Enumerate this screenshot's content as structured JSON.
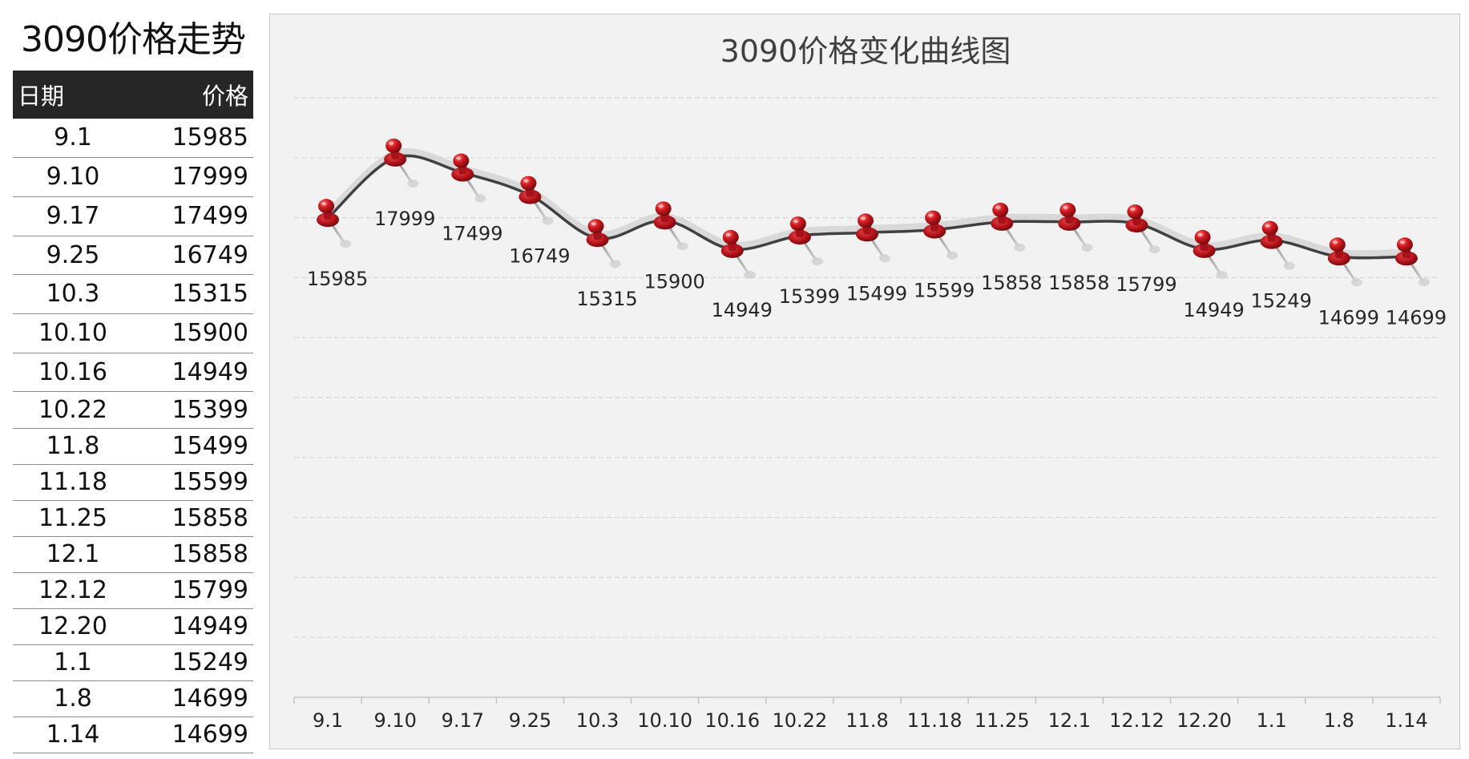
{
  "table": {
    "title": "3090价格走势",
    "headers": {
      "date": "日期",
      "price": "价格"
    },
    "rows": [
      {
        "date": "9.1",
        "price": "15985"
      },
      {
        "date": "9.10",
        "price": "17999"
      },
      {
        "date": "9.17",
        "price": "17499"
      },
      {
        "date": "9.25",
        "price": "16749"
      },
      {
        "date": "10.3",
        "price": "15315"
      },
      {
        "date": "10.10",
        "price": "15900"
      },
      {
        "date": "10.16",
        "price": "14949"
      },
      {
        "date": "10.22",
        "price": "15399"
      },
      {
        "date": "11.8",
        "price": "15499"
      },
      {
        "date": "11.18",
        "price": "15599"
      },
      {
        "date": "11.25",
        "price": "15858"
      },
      {
        "date": "12.1",
        "price": "15858"
      },
      {
        "date": "12.12",
        "price": "15799"
      },
      {
        "date": "12.20",
        "price": "14949"
      },
      {
        "date": "1.1",
        "price": "15249"
      },
      {
        "date": "1.8",
        "price": "14699"
      },
      {
        "date": "1.14",
        "price": "14699"
      }
    ]
  },
  "chart_data": {
    "type": "line",
    "title": "3090价格变化曲线图",
    "xlabel": "",
    "ylabel": "",
    "categories": [
      "9.1",
      "9.10",
      "9.17",
      "9.25",
      "10.3",
      "10.10",
      "10.16",
      "10.22",
      "11.8",
      "11.18",
      "11.25",
      "12.1",
      "12.12",
      "12.20",
      "1.1",
      "1.8",
      "1.14"
    ],
    "series": [
      {
        "values": [
          15985,
          17999,
          17499,
          16749,
          15315,
          15900,
          14949,
          15399,
          15499,
          15599,
          15858,
          15858,
          15799,
          14949,
          15249,
          14699,
          14699
        ]
      }
    ],
    "ylim": [
      0,
      20000
    ],
    "y_gridlines": [
      2000,
      4000,
      6000,
      8000,
      10000,
      12000,
      14000,
      16000,
      18000,
      20000
    ],
    "grid": true,
    "y_tick_labels_shown": false,
    "legend": "none",
    "smooth": true,
    "marker": "red-pushpin",
    "colors": {
      "line": "#404040",
      "marker": "#c0161c",
      "marker_dark": "#7a0a0e",
      "background": "#f2f2f2"
    }
  }
}
